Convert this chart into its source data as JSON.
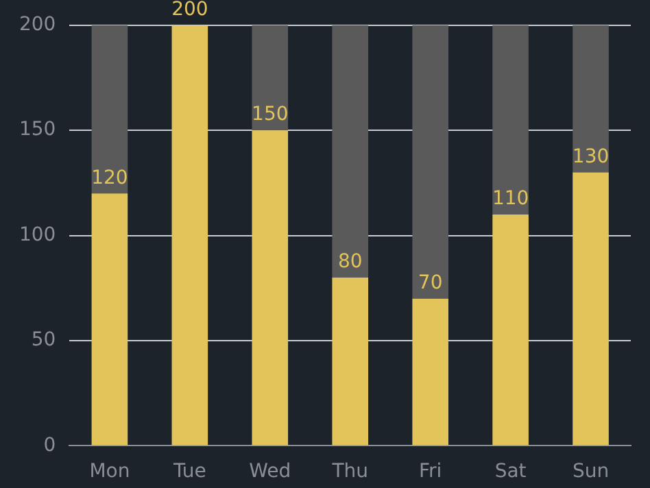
{
  "chart_data": {
    "type": "bar",
    "categories": [
      "Mon",
      "Tue",
      "Wed",
      "Thu",
      "Fri",
      "Sat",
      "Sun"
    ],
    "stacked": true,
    "series": [
      {
        "color": "#e3c45a",
        "values": [
          120,
          200,
          150,
          80,
          70,
          110,
          130
        ],
        "value_labels": [
          "120",
          "200",
          "150",
          "80",
          "70",
          "110",
          "130"
        ]
      },
      {
        "color": "#5a5a5a",
        "values": [
          80,
          0,
          50,
          120,
          130,
          90,
          70
        ]
      }
    ],
    "ylim": [
      0,
      200
    ],
    "yticks": [
      0,
      50,
      100,
      150,
      200
    ],
    "grid": "y",
    "legend": false
  }
}
